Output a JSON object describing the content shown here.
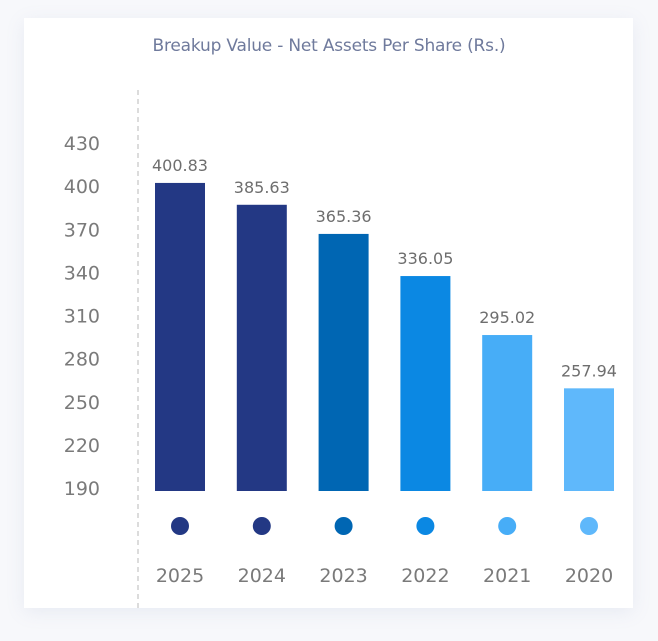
{
  "chart_data": {
    "type": "bar",
    "title": "Breakup Value - Net Assets Per Share (Rs.)",
    "xlabel": "",
    "ylabel": "",
    "categories": [
      "2025",
      "2024",
      "2023",
      "2022",
      "2021",
      "2020"
    ],
    "values": [
      400.83,
      385.63,
      365.36,
      336.05,
      295.02,
      257.94
    ],
    "value_labels": [
      "400.83",
      "385.63",
      "365.36",
      "336.05",
      "295.02",
      "257.94"
    ],
    "bar_colors": [
      "#233884",
      "#233884",
      "#0066b3",
      "#0b88e3",
      "#47adf7",
      "#5fb8fb"
    ],
    "ylim": [
      190,
      430
    ],
    "yticks": [
      430,
      400,
      370,
      340,
      310,
      280,
      250,
      220,
      190
    ],
    "grid": false,
    "legend": "none",
    "category_markers": "colored dots above year labels"
  }
}
